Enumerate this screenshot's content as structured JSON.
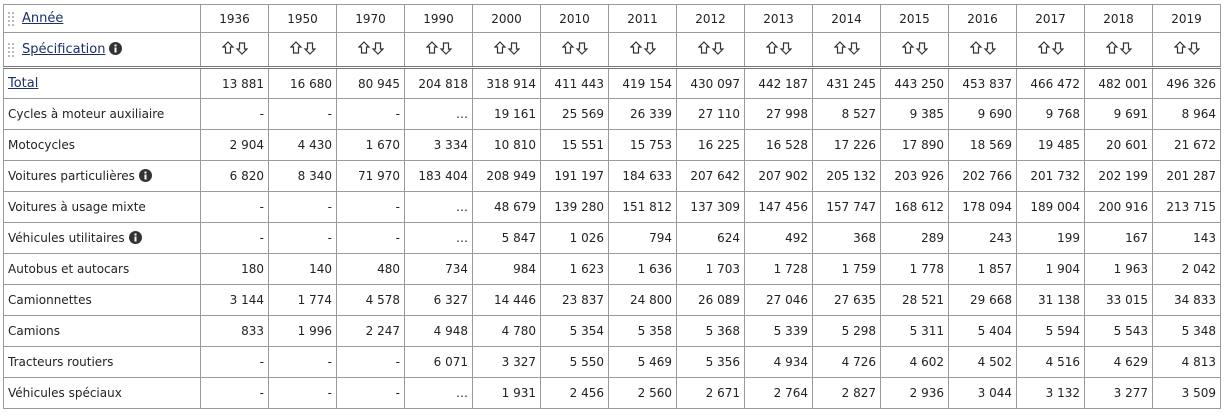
{
  "header": {
    "year_label": "Année",
    "spec_label": "Spécification",
    "years": [
      1936,
      1950,
      1970,
      1990,
      2000,
      2010,
      2011,
      2012,
      2013,
      2014,
      2015,
      2016,
      2017,
      2018,
      2019
    ]
  },
  "rows": [
    {
      "label": "Total",
      "values": [
        "13 881",
        "16 680",
        "80 945",
        "204 818",
        "318 914",
        "411 443",
        "419 154",
        "430 097",
        "442 187",
        "431 245",
        "443 250",
        "453 837",
        "466 472",
        "482 001",
        "496 326"
      ]
    },
    {
      "label": "Cycles à moteur auxiliaire",
      "values": [
        "-",
        "-",
        "-",
        "…",
        "19 161",
        "25 569",
        "26 339",
        "27 110",
        "27 998",
        "8 527",
        "9 385",
        "9 690",
        "9 768",
        "9 691",
        "8 964"
      ]
    },
    {
      "label": "Motocycles",
      "values": [
        "2 904",
        "4 430",
        "1 670",
        "3 334",
        "10 810",
        "15 551",
        "15 753",
        "16 225",
        "16 528",
        "17 226",
        "17 890",
        "18 569",
        "19 485",
        "20 601",
        "21 672"
      ]
    },
    {
      "label": "Voitures particulières",
      "values": [
        "6 820",
        "8 340",
        "71 970",
        "183 404",
        "208 949",
        "191 197",
        "184 633",
        "207 642",
        "207 902",
        "205 132",
        "203 926",
        "202 766",
        "201 732",
        "202 199",
        "201 287"
      ]
    },
    {
      "label": "Voitures à usage mixte",
      "values": [
        "-",
        "-",
        "-",
        "…",
        "48 679",
        "139 280",
        "151 812",
        "137 309",
        "147 456",
        "157 747",
        "168 612",
        "178 094",
        "189 004",
        "200 916",
        "213 715"
      ]
    },
    {
      "label": "Véhicules utilitaires",
      "values": [
        "-",
        "-",
        "-",
        "…",
        "5 847",
        "1 026",
        "794",
        "624",
        "492",
        "368",
        "289",
        "243",
        "199",
        "167",
        "143"
      ]
    },
    {
      "label": "Autobus et autocars",
      "values": [
        "180",
        "140",
        "480",
        "734",
        "984",
        "1 623",
        "1 636",
        "1 703",
        "1 728",
        "1 759",
        "1 778",
        "1 857",
        "1 904",
        "1 963",
        "2 042"
      ]
    },
    {
      "label": "Camionnettes",
      "values": [
        "3 144",
        "1 774",
        "4 578",
        "6 327",
        "14 446",
        "23 837",
        "24 800",
        "26 089",
        "27 046",
        "27 635",
        "28 521",
        "29 668",
        "31 138",
        "33 015",
        "34 833"
      ]
    },
    {
      "label": "Camions",
      "values": [
        "833",
        "1 996",
        "2 247",
        "4 948",
        "4 780",
        "5 354",
        "5 358",
        "5 368",
        "5 339",
        "5 298",
        "5 311",
        "5 404",
        "5 594",
        "5 543",
        "5 348"
      ]
    },
    {
      "label": "Tracteurs routiers",
      "values": [
        "-",
        "-",
        "-",
        "6 071",
        "3 327",
        "5 550",
        "5 469",
        "5 356",
        "4 934",
        "4 726",
        "4 602",
        "4 502",
        "4 516",
        "4 629",
        "4 813"
      ]
    },
    {
      "label": "Véhicules spéciaux",
      "values": [
        "-",
        "-",
        "-",
        "…",
        "1 931",
        "2 456",
        "2 560",
        "2 671",
        "2 764",
        "2 827",
        "2 936",
        "3 044",
        "3 132",
        "3 277",
        "3 509"
      ]
    }
  ]
}
